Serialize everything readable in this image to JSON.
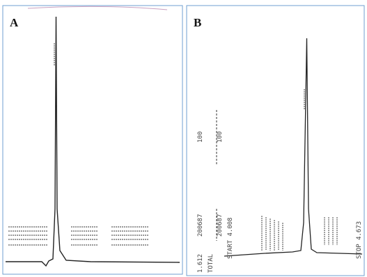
{
  "panels": [
    {
      "label": "A"
    },
    {
      "label": "B",
      "texts": [
        "1.612",
        "TOTAL",
        "200687",
        "200687",
        "100",
        "100",
        "START 4.008",
        "STOP 4.673"
      ]
    }
  ]
}
